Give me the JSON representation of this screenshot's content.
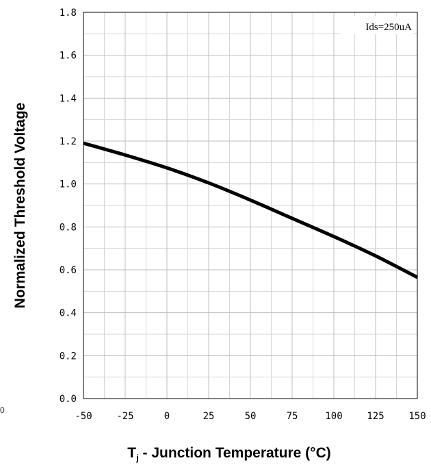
{
  "chart_data": {
    "type": "line",
    "title": "",
    "xlabel_main": "T",
    "xlabel_sub": "j",
    "xlabel_rest": " - Junction Temperature (°C)",
    "ylabel": "Normalized Threshold Voltage",
    "annotation": "Ids=250uA",
    "xlim": [
      -50,
      150
    ],
    "ylim": [
      0.0,
      1.8
    ],
    "x_ticks": [
      -50,
      -25,
      0,
      25,
      50,
      75,
      100,
      125,
      150
    ],
    "x_tick_labels": [
      "-50",
      "-25",
      "0",
      "25",
      "50",
      "75",
      "100",
      "125",
      "150"
    ],
    "y_ticks": [
      0.0,
      0.2,
      0.4,
      0.6,
      0.8,
      1.0,
      1.2,
      1.4,
      1.6,
      1.8
    ],
    "y_tick_labels": [
      "0.0",
      "0.2",
      "0.4",
      "0.6",
      "0.8",
      "1.0",
      "1.2",
      "1.4",
      "1.6",
      "1.8"
    ],
    "grid": true,
    "series": [
      {
        "color": "#000000",
        "x": [
          -50,
          -25,
          0,
          25,
          50,
          75,
          100,
          125,
          150
        ],
        "y": [
          1.19,
          1.135,
          1.075,
          1.005,
          0.925,
          0.84,
          0.755,
          0.665,
          0.565
        ]
      }
    ]
  },
  "stray_label": "0"
}
